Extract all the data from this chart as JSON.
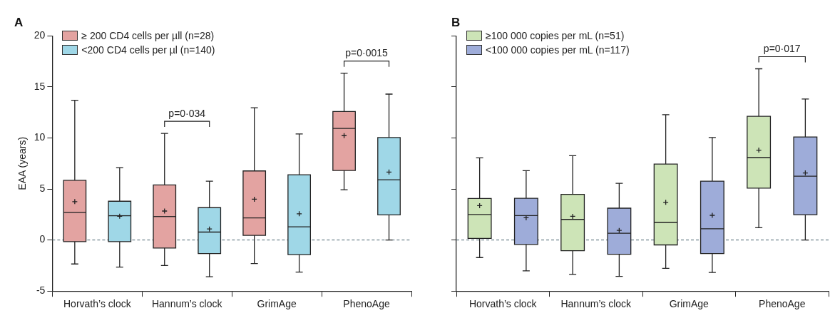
{
  "chart_data": [
    {
      "type": "box",
      "title": "A",
      "ylabel": "EAA (years)",
      "categories": [
        "Horvath’s clock",
        "Hannum’s clock",
        "GrimAge",
        "PhenoAge"
      ],
      "ylim": [
        -5,
        20
      ],
      "yticks": [
        -5,
        0,
        5,
        10,
        15,
        20
      ],
      "grid": false,
      "legend": "top left",
      "marker": "cross",
      "series": [
        {
          "name": "≥ 200 CD4 cells per µll (n=28)",
          "color": "#e3a3a1",
          "boxes": [
            {
              "low": -2.35,
              "q1": -0.16,
              "median": 2.7,
              "q3": 5.85,
              "high": 13.7,
              "mean": 3.76
            },
            {
              "low": -2.5,
              "q1": -0.78,
              "median": 2.3,
              "q3": 5.4,
              "high": 10.45,
              "mean": 2.84
            },
            {
              "low": -2.3,
              "q1": 0.46,
              "median": 2.17,
              "q3": 6.77,
              "high": 12.96,
              "mean": 4.0
            },
            {
              "low": 4.93,
              "q1": 6.82,
              "median": 10.93,
              "q3": 12.6,
              "high": 16.35,
              "mean": 10.23
            }
          ]
        },
        {
          "name": "<200 CD4 cells per µl (n=140)",
          "color": "#9fd7e7",
          "boxes": [
            {
              "low": -2.65,
              "q1": -0.16,
              "median": 2.38,
              "q3": 3.8,
              "high": 7.1,
              "mean": 2.33
            },
            {
              "low": -3.6,
              "q1": -1.33,
              "median": 0.78,
              "q3": 3.17,
              "high": 5.76,
              "mean": 1.08
            },
            {
              "low": -3.14,
              "q1": -1.43,
              "median": 1.3,
              "q3": 6.39,
              "high": 10.4,
              "mean": 2.57
            },
            {
              "low": 0,
              "q1": 2.46,
              "median": 5.9,
              "q3": 10.04,
              "high": 14.3,
              "mean": 6.66
            }
          ]
        }
      ],
      "ref_lines": [
        {
          "axis": "y",
          "value": 0,
          "color": "#4a6470",
          "line_style": "dashed"
        }
      ],
      "annotations": [
        "p=0·034",
        "p=0·0015"
      ]
    },
    {
      "type": "box",
      "title": "B",
      "categories": [
        "Horvath’s clock",
        "Hannum’s clock",
        "GrimAge",
        "PhenoAge"
      ],
      "ylim": [
        -5,
        20
      ],
      "yticks": [
        -5,
        0,
        5,
        10,
        15,
        20
      ],
      "tick_labels": "x",
      "grid": false,
      "legend": "top left",
      "marker": "cross",
      "series": [
        {
          "name": "≥100 000 copies per mL (n=51)",
          "color": "#cde4b7",
          "boxes": [
            {
              "low": -1.72,
              "q1": 0.16,
              "median": 2.5,
              "q3": 4.07,
              "high": 8.05,
              "mean": 3.37
            },
            {
              "low": -3.37,
              "q1": -1.05,
              "median": 2.02,
              "q3": 4.47,
              "high": 8.27,
              "mean": 2.32
            },
            {
              "low": -2.77,
              "q1": -0.48,
              "median": 1.72,
              "q3": 7.44,
              "high": 12.28,
              "mean": 3.69
            },
            {
              "low": 1.21,
              "q1": 5.09,
              "median": 8.08,
              "q3": 12.12,
              "high": 16.78,
              "mean": 8.81
            }
          ]
        },
        {
          "name": "<100 000 copies per mL (n=117)",
          "color": "#9eacd9",
          "boxes": [
            {
              "low": -3.02,
              "q1": -0.43,
              "median": 2.4,
              "q3": 4.09,
              "high": 6.79,
              "mean": 2.18
            },
            {
              "low": -3.56,
              "q1": -1.4,
              "median": 0.67,
              "q3": 3.12,
              "high": 5.55,
              "mean": 0.94
            },
            {
              "low": -3.18,
              "q1": -1.32,
              "median": 1.1,
              "q3": 5.77,
              "high": 10.05,
              "mean": 2.42
            },
            {
              "low": 0,
              "q1": 2.48,
              "median": 6.25,
              "q3": 10.1,
              "high": 13.82,
              "mean": 6.57
            }
          ]
        }
      ],
      "ref_lines": [
        {
          "axis": "y",
          "value": 0,
          "color": "#4a6470",
          "line_style": "dashed"
        }
      ],
      "annotations": [
        "p=0·017"
      ]
    }
  ]
}
